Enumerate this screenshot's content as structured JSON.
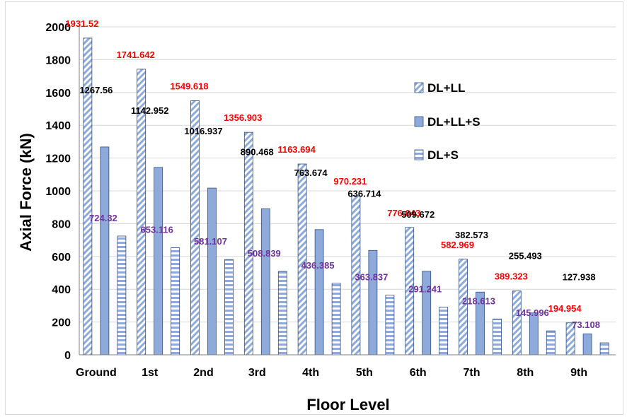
{
  "chart_data": {
    "type": "bar",
    "title": "",
    "xlabel": "Floor Level",
    "ylabel": "Axial Force (kN)",
    "ylim": [
      0,
      2000
    ],
    "yticks": [
      "0",
      "200",
      "400",
      "600",
      "800",
      "1000",
      "1200",
      "1400",
      "1600",
      "1800",
      "2000"
    ],
    "grid": "horizontal",
    "legend_position": "right",
    "categories": [
      "Ground",
      "1st",
      "2nd",
      "3rd",
      "4th",
      "5th",
      "6th",
      "7th",
      "8th",
      "9th"
    ],
    "series": [
      {
        "name": "DL+LL",
        "pattern": "diagonal-hatch",
        "label_color": "#ff0000",
        "values": [
          1931.52,
          1741.642,
          1549.618,
          1356.903,
          1163.694,
          970.231,
          776.643,
          582.969,
          389.323,
          194.954
        ],
        "labels": [
          "1931.52",
          "1741.642",
          "1549.618",
          "1356.903",
          "1163.694",
          "970.231",
          "776.643",
          "582.969",
          "389.323",
          "194.954"
        ]
      },
      {
        "name": "DL+LL+S",
        "pattern": "solid",
        "label_color": "#000000",
        "values": [
          1267.56,
          1142.952,
          1016.937,
          890.468,
          763.674,
          636.714,
          509.672,
          382.573,
          255.493,
          127.938
        ],
        "labels": [
          "1267.56",
          "1142.952",
          "1016.937",
          "890.468",
          "763.674",
          "636.714",
          "509.672",
          "382.573",
          "255.493",
          "127.938"
        ]
      },
      {
        "name": "DL+S",
        "pattern": "horizontal-stripes",
        "label_color": "#7030a0",
        "values": [
          724.32,
          653.116,
          581.107,
          508.839,
          436.385,
          363.837,
          291.241,
          218.613,
          145.996,
          73.108
        ],
        "labels": [
          "724.32",
          "653.116",
          "581.107",
          "508.839",
          "436.385",
          "363.837",
          "291.241",
          "218.613",
          "145.996",
          "73.108"
        ]
      }
    ],
    "colors": {
      "bar_fill": "#8eaadb",
      "bar_stroke": "#2f4f7f",
      "grid": "#d9d9d9",
      "axis": "#808080"
    }
  }
}
